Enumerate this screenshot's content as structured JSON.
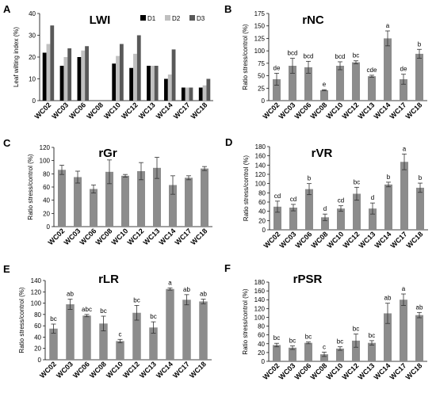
{
  "chart_data": [
    {
      "id": "A",
      "type": "bar",
      "panel_label": "A",
      "title": "LWI",
      "ylabel": "Leaf wilting index (%)",
      "ylim": [
        0,
        40
      ],
      "yticks": [
        0,
        10,
        20,
        30,
        40
      ],
      "categories": [
        "WC02",
        "WC03",
        "WC06",
        "WC08",
        "WC10",
        "WC12",
        "WC13",
        "WC14",
        "WC17",
        "WC18"
      ],
      "series": [
        {
          "name": "D1",
          "color": "#000000",
          "values": [
            22,
            16,
            20,
            0,
            17,
            15,
            16,
            10,
            6,
            6
          ]
        },
        {
          "name": "D2",
          "color": "#c0c0c0",
          "values": [
            26,
            20,
            23,
            0,
            20.5,
            21.5,
            16,
            12,
            6,
            7
          ]
        },
        {
          "name": "D3",
          "color": "#595959",
          "values": [
            34.5,
            24,
            25,
            0,
            26,
            30,
            16,
            23.5,
            6,
            10
          ]
        }
      ],
      "legend_position": "top-right"
    },
    {
      "id": "B",
      "type": "bar",
      "panel_label": "B",
      "title": "rNC",
      "ylabel": "Ratio stress/control (%)",
      "ylim": [
        0,
        175
      ],
      "yticks": [
        0,
        25,
        50,
        75,
        100,
        125,
        150,
        175
      ],
      "categories": [
        "WC02",
        "WC03",
        "WC06",
        "WC08",
        "WC10",
        "WC12",
        "WC13",
        "WC14",
        "WC17",
        "WC18"
      ],
      "values": [
        43,
        70,
        67,
        21,
        70,
        77,
        49,
        125,
        43,
        94
      ],
      "errors": [
        12,
        15,
        12,
        1,
        8,
        3,
        2,
        15,
        10,
        9
      ],
      "letters": [
        "de",
        "bcd",
        "bcd",
        "e",
        "bcd",
        "bc",
        "cde",
        "a",
        "de",
        "b"
      ]
    },
    {
      "id": "C",
      "type": "bar",
      "panel_label": "C",
      "title": "rGr",
      "ylabel": "Ratio stress/control (%)",
      "ylim": [
        0,
        120
      ],
      "yticks": [
        0,
        20,
        40,
        60,
        80,
        100,
        120
      ],
      "categories": [
        "WC02",
        "WC03",
        "WC06",
        "WC08",
        "WC10",
        "WC12",
        "WC13",
        "WC14",
        "WC17",
        "WC18"
      ],
      "values": [
        86,
        75,
        57,
        83,
        77,
        84,
        89,
        63,
        74,
        88
      ],
      "errors": [
        7,
        9,
        6,
        18,
        2,
        13,
        16,
        14,
        3,
        3
      ]
    },
    {
      "id": "D",
      "type": "bar",
      "panel_label": "D",
      "title": "rVR",
      "ylabel": "Ratio stress/control (%)",
      "ylim": [
        0,
        180
      ],
      "yticks": [
        0,
        20,
        40,
        60,
        80,
        100,
        120,
        140,
        160,
        180
      ],
      "categories": [
        "WC02",
        "WC03",
        "WC06",
        "WC08",
        "WC10",
        "WC12",
        "WC13",
        "WC14",
        "WC17",
        "WC18"
      ],
      "values": [
        50,
        48,
        88,
        27,
        46,
        78,
        46,
        98,
        147,
        91
      ],
      "errors": [
        12,
        7,
        12,
        7,
        6,
        14,
        12,
        5,
        17,
        10
      ],
      "letters": [
        "cd",
        "cd",
        "b",
        "d",
        "cd",
        "bc",
        "d",
        "b",
        "a",
        "b"
      ]
    },
    {
      "id": "E",
      "type": "bar",
      "panel_label": "E",
      "title": "rLR",
      "ylabel": "Ratio stress/control (%)",
      "ylim": [
        0,
        140
      ],
      "yticks": [
        0,
        20,
        40,
        60,
        80,
        100,
        120,
        140
      ],
      "categories": [
        "WC02",
        "WC03",
        "WC06",
        "WC08",
        "WC10",
        "WC12",
        "WC13",
        "WC14",
        "WC17",
        "WC18"
      ],
      "values": [
        55,
        98,
        78,
        64,
        33,
        83,
        57,
        125,
        106,
        103
      ],
      "errors": [
        8,
        9,
        2,
        13,
        3,
        13,
        10,
        2,
        9,
        4
      ],
      "letters": [
        "bc",
        "ab",
        "abc",
        "bc",
        "c",
        "bc",
        "bc",
        "a",
        "ab",
        "ab"
      ]
    },
    {
      "id": "F",
      "type": "bar",
      "panel_label": "F",
      "title": "rPSR",
      "ylabel": "Ratio stress/control (%)",
      "ylim": [
        0,
        180
      ],
      "yticks": [
        0,
        20,
        40,
        60,
        80,
        100,
        120,
        140,
        160,
        180
      ],
      "categories": [
        "WC02",
        "WC03",
        "WC06",
        "WC08",
        "WC10",
        "WC12",
        "WC13",
        "WC14",
        "WC17",
        "WC18"
      ],
      "values": [
        37,
        31,
        42,
        16,
        29,
        47,
        42,
        109,
        140,
        105
      ],
      "errors": [
        4,
        4,
        2,
        5,
        4,
        15,
        5,
        23,
        13,
        6
      ],
      "letters": [
        "bc",
        "bc",
        "bc",
        "c",
        "bc",
        "bc",
        "bc",
        "ab",
        "a",
        "ab"
      ]
    }
  ]
}
